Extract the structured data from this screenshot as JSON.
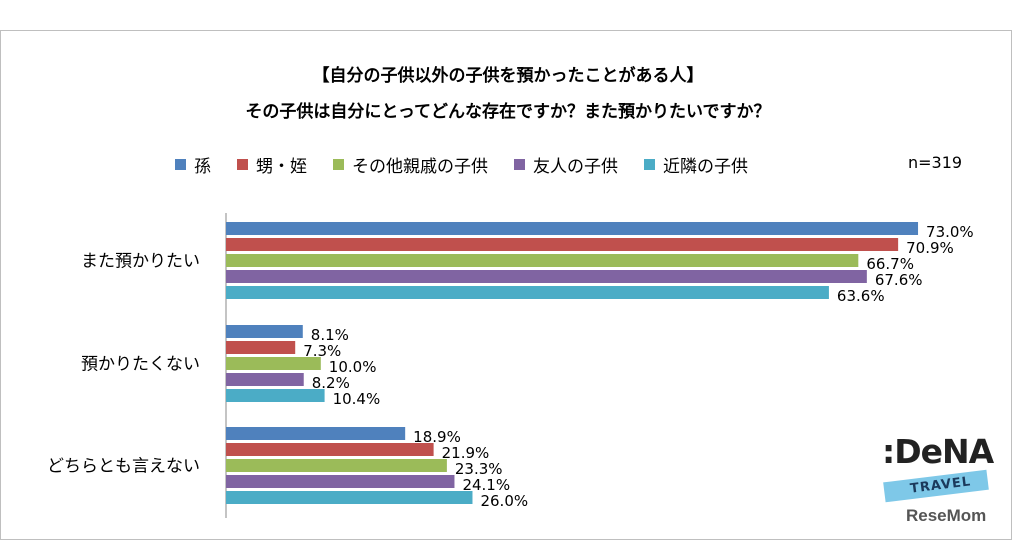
{
  "title_line1": "【自分の子供以外の子供を預かったことがある人】",
  "title_line2": "その子供は自分にとってどんな存在ですか？また預かりたいですか？",
  "sample_size": "n=319",
  "logo": {
    "brand": ":DeNA",
    "sub": "TRAVEL",
    "site": "ReseMom"
  },
  "colors": {
    "孫": "#4f81bd",
    "甥・姪": "#c0504d",
    "その他親戚の子供": "#9bbb59",
    "友人の子供": "#8064a2",
    "近隣の子供": "#4bacc6"
  },
  "chart_data": {
    "type": "bar",
    "orientation": "horizontal",
    "categories": [
      "また預かりたい",
      "預かりたくない",
      "どちらとも言えない"
    ],
    "series": [
      {
        "name": "孫",
        "values": [
          73.0,
          8.1,
          18.9
        ],
        "labels": [
          "73.0%",
          "8.1%",
          "18.9%"
        ]
      },
      {
        "name": "甥・姪",
        "values": [
          70.9,
          7.3,
          21.9
        ],
        "labels": [
          "70.9%",
          "7.3%",
          "21.9%"
        ]
      },
      {
        "name": "その他親戚の子供",
        "values": [
          66.7,
          10.0,
          23.3
        ],
        "labels": [
          "66.7%",
          "10.0%",
          "23.3%"
        ]
      },
      {
        "name": "友人の子供",
        "values": [
          67.6,
          8.2,
          24.1
        ],
        "labels": [
          "67.6%",
          "8.2%",
          "24.1%"
        ]
      },
      {
        "name": "近隣の子供",
        "values": [
          63.6,
          10.4,
          26.0
        ],
        "labels": [
          "63.6%",
          "10.4%",
          "26.0%"
        ]
      }
    ],
    "xlim": [
      0,
      80
    ],
    "legend_position": "top",
    "grid": false
  }
}
